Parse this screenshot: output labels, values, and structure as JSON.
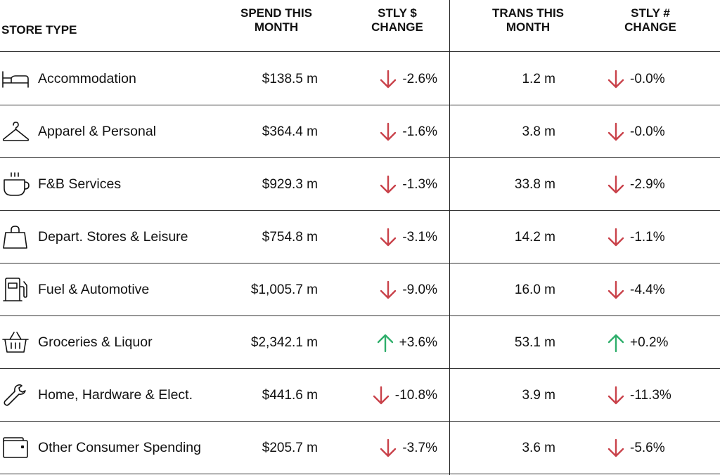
{
  "chart_data": {
    "type": "table",
    "columns": [
      "STORE TYPE",
      "SPEND THIS MONTH",
      "STLY $ CHANGE",
      "TRANS THIS MONTH",
      "STLY # CHANGE"
    ],
    "rows": [
      {
        "icon": "bed-icon",
        "store_type": "Accommodation",
        "spend": "$138.5 m",
        "stly_dollar": "-2.6%",
        "stly_dollar_dir": "down",
        "trans": "1.2 m",
        "stly_count": "-0.0%",
        "stly_count_dir": "down"
      },
      {
        "icon": "hanger-icon",
        "store_type": "Apparel & Personal",
        "spend": "$364.4 m",
        "stly_dollar": "-1.6%",
        "stly_dollar_dir": "down",
        "trans": "3.8 m",
        "stly_count": "-0.0%",
        "stly_count_dir": "down"
      },
      {
        "icon": "coffee-cup-icon",
        "store_type": "F&B Services",
        "spend": "$929.3 m",
        "stly_dollar": "-1.3%",
        "stly_dollar_dir": "down",
        "trans": "33.8 m",
        "stly_count": "-2.9%",
        "stly_count_dir": "down"
      },
      {
        "icon": "shopping-bag-icon",
        "store_type": "Depart. Stores & Leisure",
        "spend": "$754.8 m",
        "stly_dollar": "-3.1%",
        "stly_dollar_dir": "down",
        "trans": "14.2 m",
        "stly_count": "-1.1%",
        "stly_count_dir": "down"
      },
      {
        "icon": "fuel-pump-icon",
        "store_type": "Fuel & Automotive",
        "spend": "$1,005.7 m",
        "stly_dollar": "-9.0%",
        "stly_dollar_dir": "down",
        "trans": "16.0 m",
        "stly_count": "-4.4%",
        "stly_count_dir": "down"
      },
      {
        "icon": "basket-icon",
        "store_type": "Groceries & Liquor",
        "spend": "$2,342.1 m",
        "stly_dollar": "+3.6%",
        "stly_dollar_dir": "up",
        "trans": "53.1 m",
        "stly_count": "+0.2%",
        "stly_count_dir": "up"
      },
      {
        "icon": "wrench-icon",
        "store_type": "Home, Hardware & Elect.",
        "spend": "$441.6 m",
        "stly_dollar": "-10.8%",
        "stly_dollar_dir": "down",
        "trans": "3.9 m",
        "stly_count": "-11.3%",
        "stly_count_dir": "down"
      },
      {
        "icon": "wallet-icon",
        "store_type": "Other Consumer Spending",
        "spend": "$205.7 m",
        "stly_dollar": "-3.7%",
        "stly_dollar_dir": "down",
        "trans": "3.6 m",
        "stly_count": "-5.6%",
        "stly_count_dir": "down"
      }
    ],
    "colors": {
      "down": "#c9424a",
      "up": "#2fae6b"
    }
  },
  "header": {
    "store_type": "STORE TYPE",
    "spend_l1": "SPEND THIS",
    "spend_l2": "MONTH",
    "stly_dollar_l1": "STLY $",
    "stly_dollar_l2": "CHANGE",
    "trans_l1": "TRANS THIS",
    "trans_l2": "MONTH",
    "stly_count_l1": "STLY #",
    "stly_count_l2": "CHANGE"
  }
}
